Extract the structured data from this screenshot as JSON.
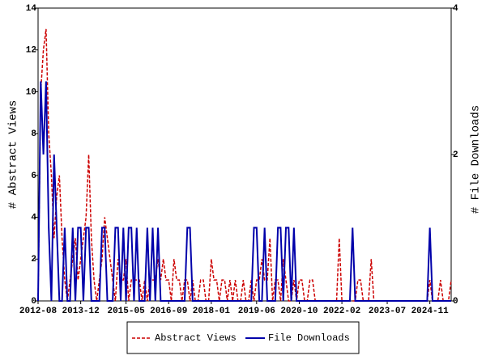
{
  "chart_data": {
    "type": "line",
    "categories": [
      "2012-08",
      null,
      null,
      null,
      null,
      null,
      null,
      null,
      null,
      null,
      null,
      null,
      null,
      null,
      null,
      null,
      "2013-12",
      null,
      null,
      null,
      null,
      null,
      null,
      null,
      null,
      null,
      null,
      null,
      null,
      null,
      null,
      null,
      null,
      "2015-05",
      null,
      null,
      null,
      null,
      null,
      null,
      null,
      null,
      null,
      null,
      null,
      null,
      null,
      null,
      null,
      "2016-09",
      null,
      null,
      null,
      null,
      null,
      null,
      null,
      null,
      null,
      null,
      null,
      null,
      null,
      null,
      null,
      "2018-01",
      null,
      null,
      null,
      null,
      null,
      null,
      null,
      null,
      null,
      null,
      null,
      null,
      null,
      null,
      null,
      null,
      "2019-06",
      null,
      null,
      null,
      null,
      null,
      null,
      null,
      null,
      null,
      null,
      null,
      null,
      null,
      null,
      null,
      "2020-10",
      null,
      null,
      null,
      null,
      null,
      null,
      null,
      null,
      null,
      null,
      null,
      null,
      null,
      null,
      null,
      "2022-02",
      null,
      null,
      null,
      null,
      null,
      null,
      null,
      null,
      null,
      null,
      null,
      null,
      null,
      null,
      null,
      null,
      "2023-07",
      null,
      null,
      null,
      null,
      null,
      null,
      null,
      null,
      null,
      null,
      null,
      null,
      null,
      null,
      null,
      "2024-11",
      null,
      null,
      null,
      null,
      null,
      null,
      null,
      null
    ],
    "ylabel": "# Abstract Views",
    "y2label": "# File Downloads",
    "ylim": [
      0,
      14
    ],
    "yticks": [
      0,
      2,
      4,
      6,
      8,
      10,
      12,
      14
    ],
    "y2lim": [
      0,
      4
    ],
    "y2ticks": [
      0,
      2,
      4
    ],
    "legend": "bottom",
    "series": [
      {
        "name": "Abstract Views",
        "color": "#cc0000",
        "axis": "y",
        "values": [
          0,
          10,
          12,
          13,
          8,
          6,
          3,
          5,
          6,
          3,
          1,
          0,
          1,
          2,
          3,
          1,
          2,
          3,
          4,
          7,
          3,
          1,
          0,
          1,
          2,
          4,
          3,
          2,
          1,
          0,
          2,
          1,
          1,
          2,
          0,
          1,
          1,
          1,
          1,
          0,
          1,
          0,
          1,
          1,
          1,
          2,
          1,
          2,
          1,
          1,
          0,
          2,
          1,
          1,
          0,
          1,
          1,
          0,
          1,
          0,
          0,
          1,
          1,
          0,
          0,
          2,
          1,
          1,
          0,
          1,
          1,
          0,
          1,
          0,
          1,
          0,
          0,
          1,
          0,
          0,
          1,
          0,
          1,
          1,
          2,
          1,
          1,
          3,
          0,
          1,
          1,
          0,
          2,
          1,
          0,
          0,
          1,
          0,
          1,
          1,
          0,
          0,
          1,
          1,
          0,
          0,
          0,
          0,
          0,
          0,
          0,
          0,
          0,
          3,
          0,
          0,
          0,
          0,
          0,
          0,
          1,
          1,
          0,
          0,
          0,
          2,
          0,
          0,
          0,
          0,
          0,
          0,
          0,
          0,
          0,
          0,
          0,
          0,
          0,
          0,
          0,
          0,
          0,
          0,
          0,
          0,
          0,
          1,
          0,
          0,
          0,
          1,
          0,
          0,
          0,
          1
        ]
      },
      {
        "name": "File Downloads",
        "color": "#0000aa",
        "axis": "y2",
        "values": [
          0,
          3,
          2,
          3,
          1,
          0,
          2,
          1,
          0,
          0,
          1,
          0,
          0,
          1,
          0,
          1,
          1,
          0,
          1,
          1,
          0,
          0,
          0,
          0,
          1,
          1,
          0,
          0,
          0,
          1,
          1,
          0,
          1,
          0,
          1,
          1,
          0,
          1,
          0,
          0,
          0,
          1,
          0,
          1,
          0,
          1,
          0,
          0,
          0,
          0,
          0,
          0,
          0,
          0,
          0,
          0,
          1,
          1,
          0,
          0,
          0,
          0,
          0,
          0,
          0,
          0,
          0,
          0,
          0,
          0,
          0,
          0,
          0,
          0,
          0,
          0,
          0,
          0,
          0,
          0,
          0,
          1,
          1,
          0,
          0,
          1,
          0,
          0,
          0,
          0,
          1,
          1,
          0,
          1,
          1,
          0,
          1,
          0,
          0,
          0,
          0,
          0,
          0,
          0,
          0,
          0,
          0,
          0,
          0,
          0,
          0,
          0,
          0,
          0,
          0,
          0,
          0,
          0,
          1,
          0,
          0,
          0,
          0,
          0,
          0,
          0,
          0,
          0,
          0,
          0,
          0,
          0,
          0,
          0,
          0,
          0,
          0,
          0,
          0,
          0,
          0,
          0,
          0,
          0,
          0,
          0,
          0,
          1,
          0,
          0,
          0,
          0,
          0,
          0,
          0,
          0
        ]
      }
    ]
  }
}
